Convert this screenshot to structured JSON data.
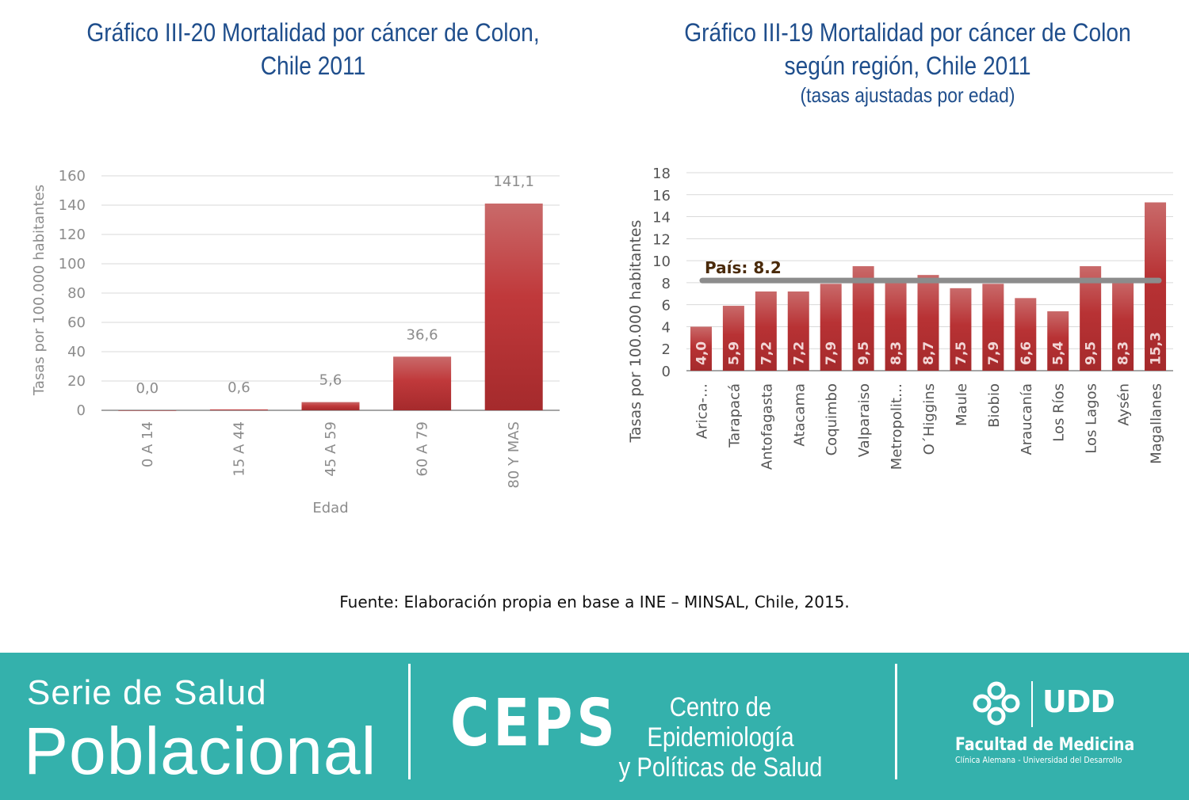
{
  "charts": {
    "left": {
      "title_line1": "Gráfico III-20 Mortalidad por cáncer de Colon,",
      "title_line2": "Chile 2011"
    },
    "right": {
      "title_line1": "Gráfico III-19 Mortalidad por cáncer de Colon",
      "title_line2": "según región, Chile 2011",
      "title_line3": "(tasas ajustadas por edad)"
    }
  },
  "chart_data": [
    {
      "type": "bar",
      "title": "Gráfico III-20 Mortalidad por cáncer de Colon, Chile 2011",
      "xlabel": "Edad",
      "ylabel": "Tasas por 100.000 habitantes",
      "categories": [
        "0 A 14",
        "15 A 44",
        "45 A 59",
        "60 A 79",
        "80 Y MAS"
      ],
      "values": [
        0.0,
        0.6,
        5.6,
        36.6,
        141.1
      ],
      "data_labels": [
        "0,0",
        "0,6",
        "5,6",
        "36,6",
        "141,1"
      ],
      "yticks": [
        0,
        20,
        40,
        60,
        80,
        100,
        120,
        140,
        160
      ],
      "ylim": [
        0,
        160
      ],
      "grid": true,
      "legend": "none",
      "bar_color": "#c0393b"
    },
    {
      "type": "bar",
      "title": "Gráfico III-19 Mortalidad por cáncer de Colon según región, Chile 2011 (tasas ajustadas por edad)",
      "xlabel": "",
      "ylabel": "Tasas por 100.000 habitantes",
      "categories": [
        "Arica-…",
        "Tarapacá",
        "Antofagasta",
        "Atacama",
        "Coquimbo",
        "Valparaiso",
        "Metropolit…",
        "O´Higgins",
        "Maule",
        "Biobio",
        "Araucanía",
        "Los Ríos",
        "Los Lagos",
        "Aysén",
        "Magallanes"
      ],
      "values": [
        4.0,
        5.9,
        7.2,
        7.2,
        7.9,
        9.5,
        8.3,
        8.7,
        7.5,
        7.9,
        6.6,
        5.4,
        9.5,
        8.3,
        15.3
      ],
      "data_labels": [
        "4,0",
        "5,9",
        "7,2",
        "7,2",
        "7,9",
        "9,5",
        "8,3",
        "8,7",
        "7,5",
        "7,9",
        "6,6",
        "5,4",
        "9,5",
        "8,3",
        "15,3"
      ],
      "yticks": [
        0,
        2,
        4,
        6,
        8,
        10,
        12,
        14,
        16,
        18
      ],
      "ylim": [
        0,
        18
      ],
      "grid": true,
      "legend": "none",
      "bar_color": "#b83234",
      "reference_line": {
        "value": 8.2,
        "label": "País: 8.2",
        "color": "#8c8c8c"
      }
    }
  ],
  "source_note": "Fuente: Elaboración propia en base a INE – MINSAL, Chile, 2015.",
  "footer": {
    "series_line1": "Serie de Salud",
    "series_line2": "Poblacional",
    "ceps_word": "CEPS",
    "ceps_desc_line1": "Centro de Epidemiología",
    "ceps_desc_line2": "y Políticas de Salud",
    "udd_letters": "UDD",
    "faculty": "Facultad de Medicina",
    "faculty_sub": "Clínica Alemana - Universidad del Desarrollo",
    "background_color": "#34b1ac"
  }
}
